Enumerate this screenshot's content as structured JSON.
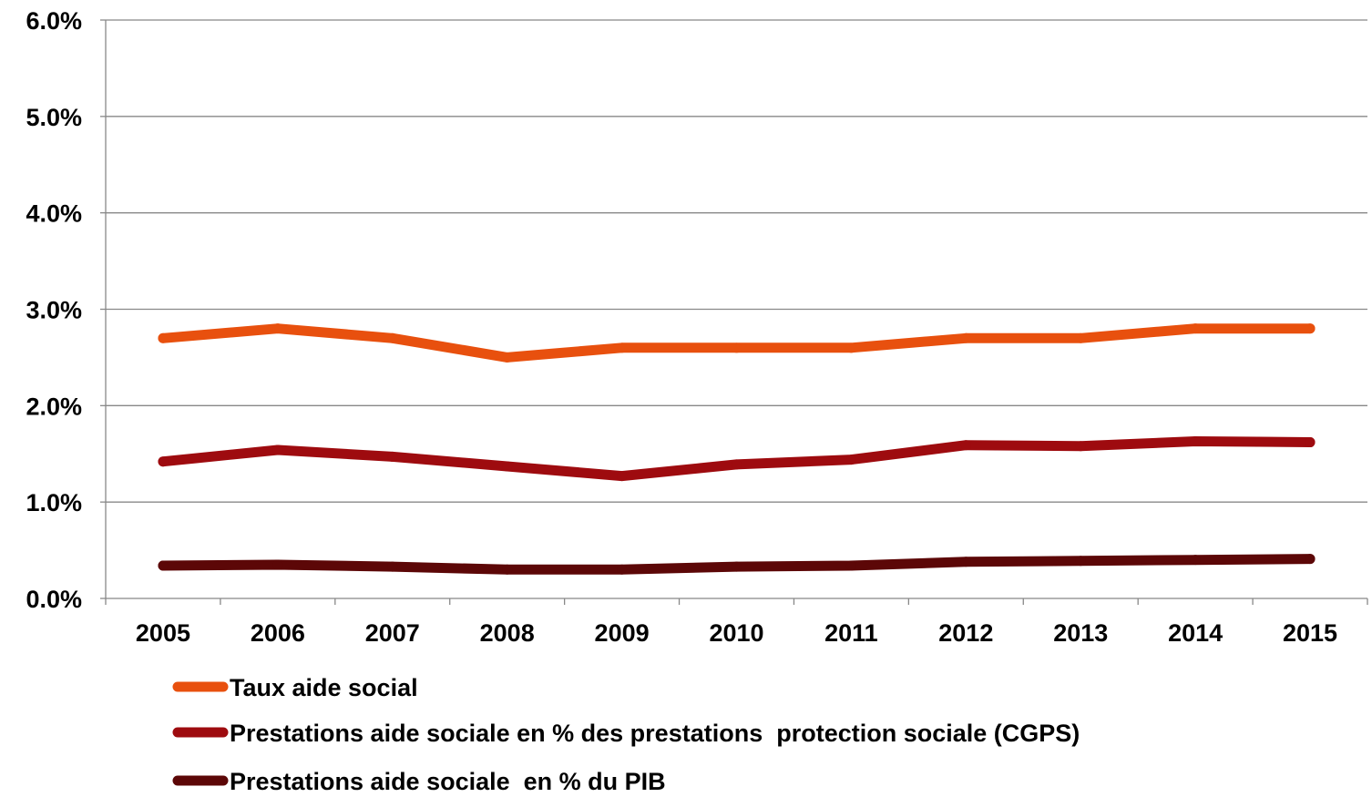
{
  "chart_data": {
    "type": "line",
    "categories": [
      "2005",
      "2006",
      "2007",
      "2008",
      "2009",
      "2010",
      "2011",
      "2012",
      "2013",
      "2014",
      "2015"
    ],
    "ylim": [
      0,
      6
    ],
    "yticks": [
      {
        "value": 0,
        "label": "0.0%"
      },
      {
        "value": 1,
        "label": "1.0%"
      },
      {
        "value": 2,
        "label": "2.0%"
      },
      {
        "value": 3,
        "label": "3.0%"
      },
      {
        "value": 4,
        "label": "4.0%"
      },
      {
        "value": 5,
        "label": "5.0%"
      },
      {
        "value": 6,
        "label": "6.0%"
      }
    ],
    "grid": true,
    "legend_position": "bottom",
    "series": [
      {
        "name": "Taux aide social",
        "color": "#E8500E",
        "values": [
          2.7,
          2.8,
          2.7,
          2.5,
          2.6,
          2.6,
          2.6,
          2.7,
          2.7,
          2.8,
          2.8
        ]
      },
      {
        "name": "Prestations aide sociale en % des prestations  protection sociale (CGPS)",
        "color": "#9E0B0F",
        "values": [
          1.42,
          1.54,
          1.47,
          1.37,
          1.27,
          1.39,
          1.44,
          1.59,
          1.58,
          1.63,
          1.62
        ]
      },
      {
        "name": "Prestations aide sociale  en % du PIB",
        "color": "#5C0707",
        "values": [
          0.34,
          0.35,
          0.33,
          0.3,
          0.3,
          0.33,
          0.34,
          0.38,
          0.39,
          0.4,
          0.41
        ]
      }
    ]
  }
}
